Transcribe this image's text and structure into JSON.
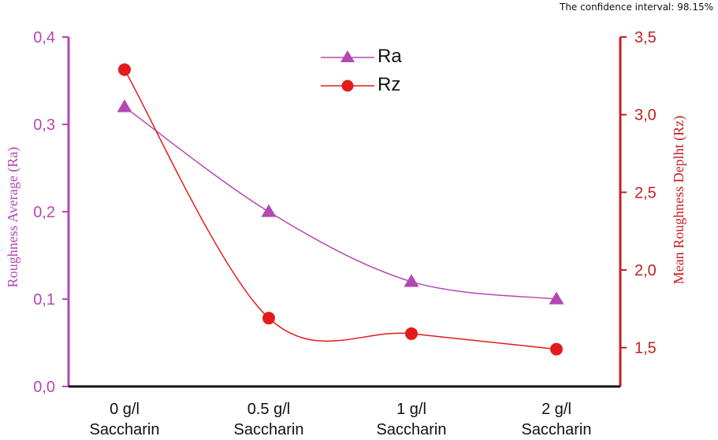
{
  "note": "The confidence interval: 98.15%",
  "chart_data": {
    "type": "line",
    "categories": [
      "0 g/l Saccharin",
      "0.5 g/l Saccharin",
      "1 g/l Saccharin",
      "2 g/l Saccharin"
    ],
    "category_lines": [
      [
        "0 g/l",
        "Saccharin"
      ],
      [
        "0.5 g/l",
        "Saccharin"
      ],
      [
        "1 g/l",
        "Saccharin"
      ],
      [
        "2 g/l",
        "Saccharin"
      ]
    ],
    "series": [
      {
        "name": "Ra",
        "axis": "left",
        "marker": "triangle",
        "color": "#b347b3",
        "values": [
          0.32,
          0.2,
          0.12,
          0.1
        ]
      },
      {
        "name": "Rz",
        "axis": "right",
        "marker": "circle",
        "color": "#e31b1b",
        "values": [
          3.29,
          1.69,
          1.59,
          1.49
        ]
      }
    ],
    "ylabel_left": "Roughness Average (Ra)",
    "ylabel_right": "Mean Roughness Deplht (Rz)",
    "ylim_left": [
      0,
      0.4
    ],
    "ylim_right": [
      1.25,
      3.5
    ],
    "yticks_left": [
      "0,0",
      "0,1",
      "0,2",
      "0,3",
      "0,4"
    ],
    "yticks_right": [
      "1,5",
      "2,0",
      "2,5",
      "3,0",
      "3,5"
    ],
    "ytick_values_left": [
      0,
      0.1,
      0.2,
      0.3,
      0.4
    ],
    "ytick_values_right": [
      1.5,
      2.0,
      2.5,
      3.0,
      3.5
    ],
    "legend_position": "top-center",
    "grid": false,
    "colors": {
      "left_axis": "#b347b3",
      "right_axis": "#c42020",
      "axis_line": "#111111"
    }
  }
}
